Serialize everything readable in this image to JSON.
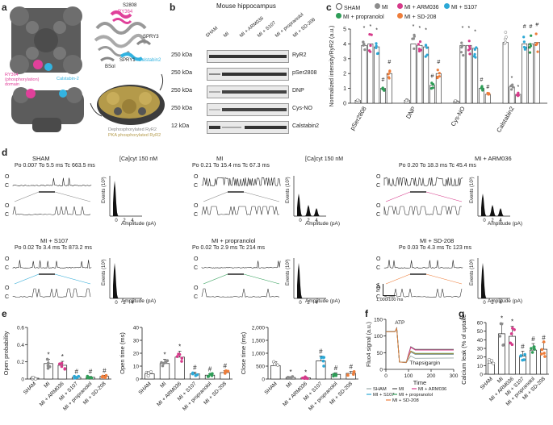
{
  "panel_letters": [
    "a",
    "b",
    "c",
    "d",
    "e",
    "f",
    "g"
  ],
  "colors": {
    "sham": "#ffffff",
    "mi": "#8c8c8c",
    "arm036": "#d63a8a",
    "s107": "#2ba8d6",
    "propranolol": "#2e9d57",
    "sd208": "#ee7d3a",
    "structure_grey": "#5a5a5a",
    "gold": "#b49a4a",
    "pink_domain": "#e0409a",
    "cyan_domain": "#33b3e0"
  },
  "panel_a": {
    "labels": {
      "ry364_top": "RY364",
      "s2808": "S2808",
      "spry3": "SPRY3",
      "bsol": "BSol",
      "spry1": "SPRY1",
      "calstabin2_right": "Calstabin2",
      "ry364_phos_1": "RY364",
      "ry364_phos_2": "(phosphorylation)",
      "ry364_phos_3": "domain",
      "calstabin2_left": "Calstabin-2",
      "legend_dephos": "Dephosphorylated RyR2",
      "legend_pka": "PKA phosphorylated RyR2"
    }
  },
  "panel_b": {
    "title": "Mouse hippocampus",
    "lanes": [
      "SHAM",
      "MI",
      "MI + ARM036",
      "MI + S107",
      "MI + propranolol",
      "MI + SD-208"
    ],
    "rows": [
      {
        "kda": "250 kDa",
        "name": "RyR2"
      },
      {
        "kda": "250 kDa",
        "name": "pSer2808"
      },
      {
        "kda": "250 kDa",
        "name": "DNP"
      },
      {
        "kda": "250 kDa",
        "name": "Cys-NO"
      },
      {
        "kda": "12 kDa",
        "name": "Calstabin2"
      }
    ]
  },
  "panel_c": {
    "legend": [
      "SHAM",
      "MI",
      "MI + ARM036",
      "MI + S107",
      "MI + propranolol",
      "MI + SD-208"
    ],
    "ylabel": "Normalized intensity/RyR2 (a.u.)",
    "yticks": [
      "0",
      "1",
      "2",
      "3",
      "4",
      "5"
    ],
    "groups": [
      "pSer2808",
      "DNP",
      "Cys-NO",
      "Calstabin2"
    ],
    "star": "*",
    "hash": "#"
  },
  "chart_data": [
    {
      "type": "bar",
      "panel": "c",
      "ylabel": "Normalized intensity/RyR2 (a.u.)",
      "ylim": [
        0,
        5
      ],
      "categories": [
        "pSer2808",
        "DNP",
        "Cys-NO",
        "Calstabin2"
      ],
      "series": [
        {
          "name": "SHAM",
          "values": [
            0.2,
            0.2,
            0.15,
            4.1
          ]
        },
        {
          "name": "MI",
          "values": [
            3.9,
            4.0,
            3.9,
            1.1
          ]
        },
        {
          "name": "MI + ARM036",
          "values": [
            4.0,
            3.9,
            3.9,
            0.6
          ]
        },
        {
          "name": "MI + S107",
          "values": [
            3.8,
            3.8,
            3.7,
            4.0
          ]
        },
        {
          "name": "MI + propranolol",
          "values": [
            1.0,
            1.2,
            1.0,
            4.0
          ]
        },
        {
          "name": "MI + SD-208",
          "values": [
            2.0,
            2.0,
            0.6,
            4.1
          ]
        }
      ],
      "annotations": {
        "pSer2808": [
          "",
          "*",
          "*",
          "*",
          "#",
          "#"
        ],
        "DNP": [
          "",
          "*",
          "*",
          "*",
          "#",
          "#"
        ],
        "Cys-NO": [
          "",
          "*",
          "*",
          "*",
          "#",
          "#"
        ],
        "Calstabin2": [
          "",
          "*",
          "*",
          "#",
          "#",
          "#"
        ]
      }
    },
    {
      "type": "bar",
      "panel": "e-open-probability",
      "ylabel": "Open probability",
      "ylim": [
        0,
        0.6
      ],
      "yticks": [
        "0",
        "0.2",
        "0.4",
        "0.6"
      ],
      "categories": [
        "SHAM",
        "MI",
        "MI + ARM036",
        "MI + S107",
        "MI + propranolol",
        "MI + SD-208"
      ],
      "values": [
        0.01,
        0.18,
        0.16,
        0.02,
        0.02,
        0.03
      ],
      "marks": [
        "",
        "*",
        "*",
        "#",
        "#",
        "#"
      ]
    },
    {
      "type": "bar",
      "panel": "e-open-time",
      "ylabel": "Open time (ms)",
      "ylim": [
        0,
        40
      ],
      "yticks": [
        "0",
        "10",
        "20",
        "30",
        "40"
      ],
      "categories": [
        "SHAM",
        "MI",
        "MI + ARM036",
        "MI + S107",
        "MI + propranolol",
        "MI + SD-208"
      ],
      "values": [
        4,
        12,
        17,
        4,
        3,
        5
      ],
      "marks": [
        "",
        "*",
        "*",
        "#",
        "#",
        "#"
      ]
    },
    {
      "type": "bar",
      "panel": "e-close-time",
      "ylabel": "Close time (ms)",
      "ylim": [
        0,
        2000
      ],
      "yticks": [
        "0",
        "500",
        "1,000",
        "1,500",
        "2,000"
      ],
      "categories": [
        "SHAM",
        "MI",
        "MI + ARM036",
        "MI + S107",
        "MI + propranolol",
        "MI + SD-208"
      ],
      "values": [
        520,
        60,
        50,
        700,
        180,
        220
      ],
      "marks": [
        "",
        "*",
        "*",
        "#",
        "#",
        "#"
      ]
    },
    {
      "type": "line",
      "panel": "f",
      "ylabel": "Fluo4 signal (a.u.)",
      "xlabel": "Time",
      "xlim": [
        0,
        300
      ],
      "xticks": [
        "0",
        "100",
        "200",
        "300"
      ],
      "ylim": [
        0,
        150
      ],
      "yticks": [
        "0",
        "50",
        "100",
        "150"
      ],
      "annotations": [
        "ATP",
        "Thapsigargin"
      ],
      "series": [
        {
          "name": "SHAM",
          "x": [
            0,
            40,
            48,
            60,
            90,
            110,
            130,
            300
          ],
          "y": [
            113,
            113,
            125,
            22,
            20,
            40,
            33,
            34
          ]
        },
        {
          "name": "MI",
          "x": [
            0,
            40,
            48,
            60,
            90,
            110,
            130,
            300
          ],
          "y": [
            113,
            113,
            123,
            22,
            21,
            68,
            60,
            60
          ]
        },
        {
          "name": "MI + ARM036",
          "x": [
            0,
            40,
            48,
            60,
            90,
            110,
            130,
            300
          ],
          "y": [
            113,
            113,
            124,
            22,
            21,
            66,
            58,
            58
          ]
        },
        {
          "name": "MI + S107",
          "x": [
            0,
            40,
            48,
            60,
            90,
            110,
            130,
            300
          ],
          "y": [
            113,
            113,
            122,
            22,
            21,
            52,
            45,
            45
          ]
        },
        {
          "name": "MI + propranolol",
          "x": [
            0,
            40,
            48,
            60,
            90,
            110,
            130,
            300
          ],
          "y": [
            113,
            113,
            123,
            22,
            21,
            55,
            48,
            48
          ]
        },
        {
          "name": "MI + SD-208",
          "x": [
            0,
            40,
            48,
            60,
            90,
            110,
            130,
            300
          ],
          "y": [
            113,
            113,
            122,
            22,
            21,
            54,
            46,
            46
          ]
        }
      ],
      "legend": [
        "SHAM",
        "MI",
        "MI + ARM036",
        "MI + S107",
        "MI + propranolol",
        "MI + SD-208"
      ]
    },
    {
      "type": "bar",
      "panel": "g",
      "ylabel": "Calcium leak (% of uptake)",
      "ylim": [
        0,
        60
      ],
      "yticks": [
        "0",
        "10",
        "20",
        "30",
        "40",
        "50",
        "60"
      ],
      "categories": [
        "SHAM",
        "MI",
        "MI + ARM036",
        "MI + S107",
        "MI + propranolol",
        "MI + SD-208"
      ],
      "values": [
        13,
        47,
        44,
        21,
        28,
        29
      ],
      "marks": [
        "",
        "*",
        "*",
        "#",
        "#",
        "#"
      ]
    }
  ],
  "panel_d": {
    "conc_1": "[Ca]cyt 150 nM",
    "conc_2": "[Ca]cyt 150 nM",
    "hist_xlabel": "Amplitude (pA)",
    "hist_ylabel": "Events (10³)",
    "hist_xticks": [
      "0",
      "2",
      "4"
    ],
    "o_label": "O",
    "c_label": "C",
    "scale_v": "5 pA",
    "scale_h": "1,000/100 ms",
    "traces": [
      {
        "name": "SHAM",
        "stats": "Po 0.007 To 5.5 ms Tc 663.5 ms"
      },
      {
        "name": "MI",
        "stats": "Po 0.21 To 15.4 ms Tc 67.3 ms"
      },
      {
        "name": "MI + ARM036",
        "stats": "Po 0.20 To 18.3 ms Tc 45.4 ms"
      },
      {
        "name": "MI + S107",
        "stats": "Po 0.02 To 3.4 ms Tc 873.2 ms"
      },
      {
        "name": "MI + propranolol",
        "stats": "Po 0.02 To 2.9 ms Tc 214 ms"
      },
      {
        "name": "MI + SD-208",
        "stats": "Po 0.03 To 4.3 ms Tc 123 ms"
      }
    ]
  }
}
